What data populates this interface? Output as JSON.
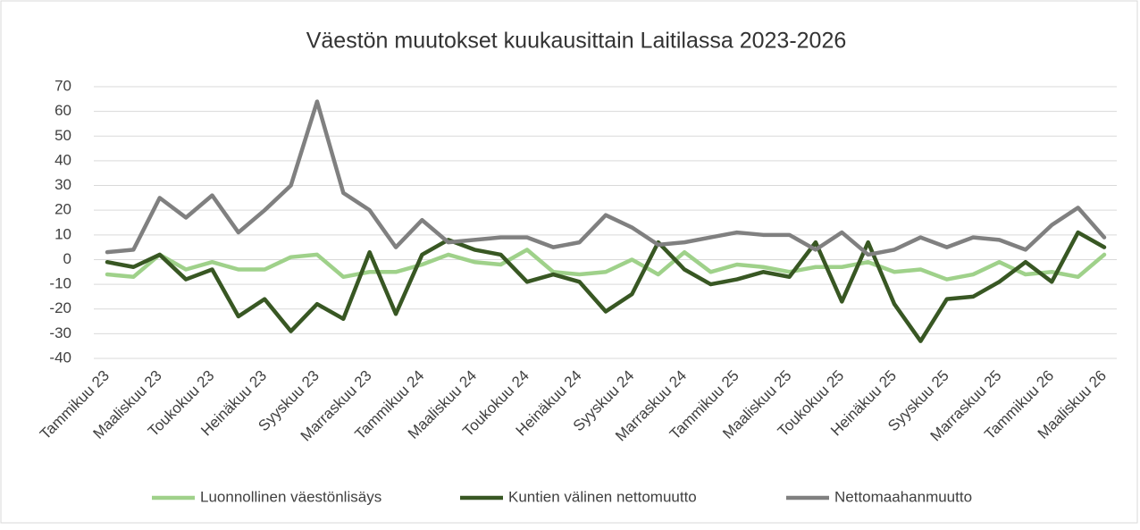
{
  "chart_data": {
    "type": "line",
    "title": "Väestön muutokset kuukausittain Laitilassa 2023-2026",
    "categories": [
      "Tammikuu 23",
      null,
      "Maaliskuu 23",
      null,
      "Toukokuu 23",
      null,
      "Heinäkuu 23",
      null,
      "Syyskuu 23",
      null,
      "Marraskuu 23",
      null,
      "Tammikuu 24",
      null,
      "Maaliskuu 24",
      null,
      "Toukokuu 24",
      null,
      "Heinäkuu 24",
      null,
      "Syyskuu 24",
      null,
      "Marraskuu 24",
      null,
      "Tammikuu 25",
      null,
      "Maaliskuu 25",
      null,
      "Toukokuu 25",
      null,
      "Heinäkuu 25",
      null,
      "Syyskuu 25",
      null,
      "Marraskuu 25",
      null,
      "Tammikuu 26",
      null,
      "Maaliskuu 26"
    ],
    "series": [
      {
        "name": "Luonnollinen väestönlisäys",
        "color": "#9fd18a",
        "values": [
          -6,
          -7,
          2,
          -4,
          -1,
          -4,
          -4,
          1,
          2,
          -7,
          -5,
          -5,
          -2,
          2,
          -1,
          -2,
          4,
          -5,
          -6,
          -5,
          0,
          -6,
          3,
          -5,
          -2,
          -3,
          -5,
          -3,
          -3,
          -1,
          -5,
          -4,
          -8,
          -6,
          -1,
          -6,
          -5,
          -7,
          2
        ]
      },
      {
        "name": "Kuntien välinen nettomuutto",
        "color": "#385723",
        "values": [
          -1,
          -3,
          2,
          -8,
          -4,
          -23,
          -16,
          -29,
          -18,
          -24,
          3,
          -22,
          2,
          8,
          4,
          2,
          -9,
          -6,
          -9,
          -21,
          -14,
          7,
          -4,
          -10,
          -8,
          -5,
          -7,
          7,
          -17,
          7,
          -18,
          -33,
          -16,
          -15,
          -9,
          -1,
          -9,
          11,
          5
        ]
      },
      {
        "name": "Nettomaahanmuutto",
        "color": "#808080",
        "values": [
          3,
          4,
          25,
          17,
          26,
          11,
          20,
          30,
          64,
          27,
          20,
          5,
          16,
          7,
          8,
          9,
          9,
          5,
          7,
          18,
          13,
          6,
          7,
          9,
          11,
          10,
          10,
          4,
          11,
          2,
          4,
          9,
          5,
          9,
          8,
          4,
          14,
          21,
          9
        ]
      }
    ],
    "ylim": [
      -40,
      70
    ],
    "yticks": [
      -40,
      -30,
      -20,
      -10,
      0,
      10,
      20,
      30,
      40,
      50,
      60,
      70
    ],
    "grid": true,
    "legend": "bottom"
  }
}
